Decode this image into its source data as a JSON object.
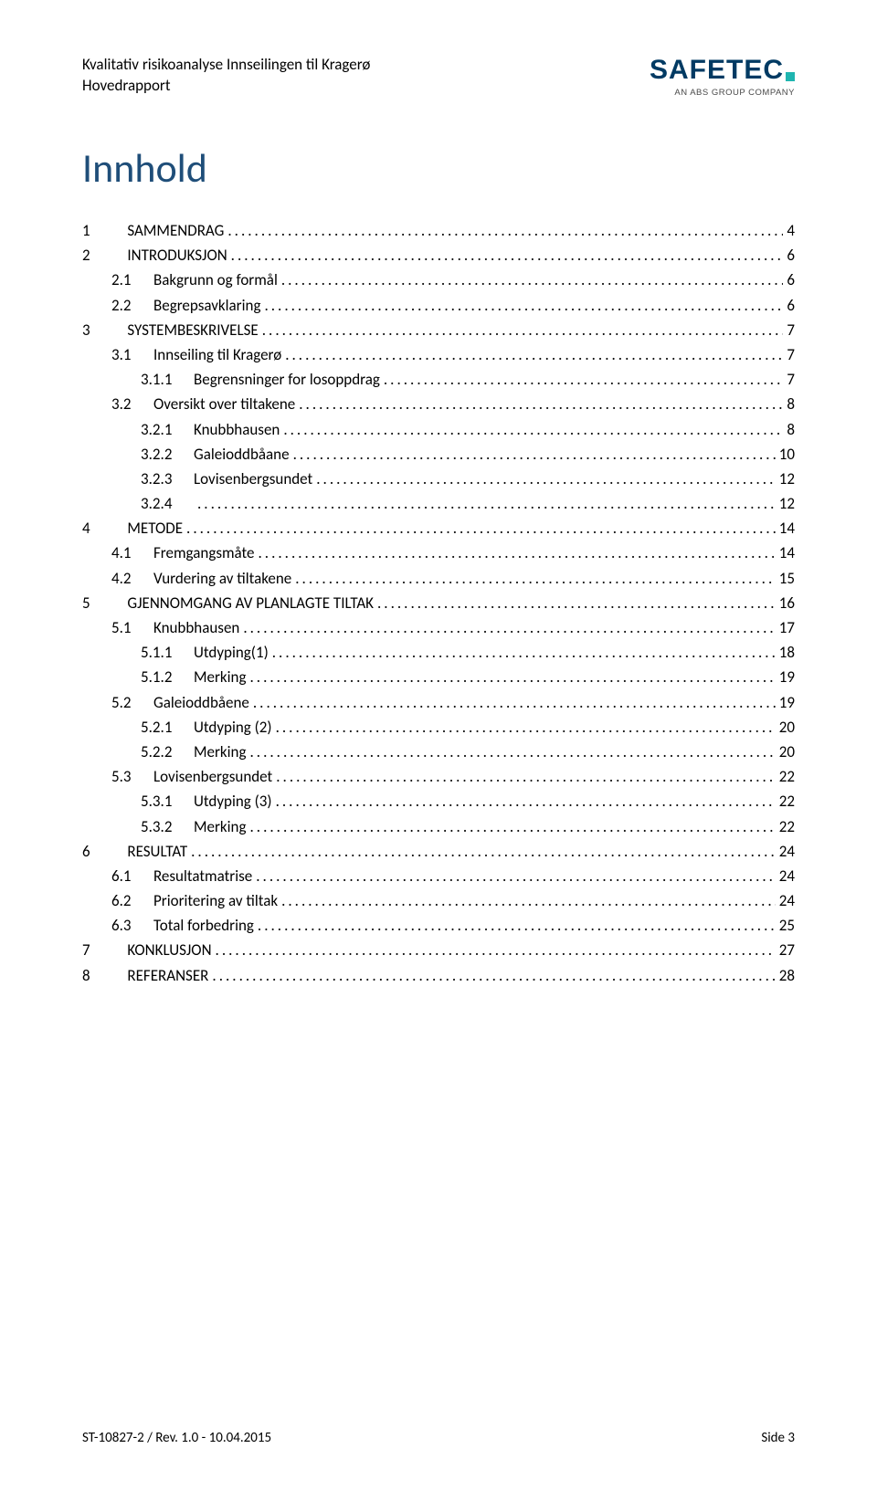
{
  "header": {
    "line1": "Kvalitativ risikoanalyse Innseilingen til Kragerø",
    "line2": "Hovedrapport",
    "logo_main": "SAFE",
    "logo_main_teal": "TEC",
    "logo_sub": "AN ABS GROUP COMPANY"
  },
  "title": "Innhold",
  "toc": [
    {
      "level": 1,
      "num": "1",
      "label": "SAMMENDRAG",
      "page": "4"
    },
    {
      "level": 1,
      "num": "2",
      "label": "INTRODUKSJON",
      "page": "6"
    },
    {
      "level": 2,
      "num": "2.1",
      "label": "Bakgrunn og formål",
      "page": "6"
    },
    {
      "level": 2,
      "num": "2.2",
      "label": "Begrepsavklaring",
      "page": "6"
    },
    {
      "level": 1,
      "num": "3",
      "label": "SYSTEMBESKRIVELSE",
      "page": "7"
    },
    {
      "level": 2,
      "num": "3.1",
      "label": "Innseiling til Kragerø",
      "page": "7"
    },
    {
      "level": 3,
      "num": "3.1.1",
      "label": "Begrensninger for losoppdrag",
      "page": "7"
    },
    {
      "level": 2,
      "num": "3.2",
      "label": "Oversikt over tiltakene",
      "page": "8"
    },
    {
      "level": 3,
      "num": "3.2.1",
      "label": "Knubbhausen",
      "page": "8"
    },
    {
      "level": 3,
      "num": "3.2.2",
      "label": "Galeioddbåane",
      "page": "10"
    },
    {
      "level": 3,
      "num": "3.2.3",
      "label": "Lovisenbergsundet",
      "page": "12"
    },
    {
      "level": 3,
      "num": "3.2.4",
      "label": "",
      "page": "12"
    },
    {
      "level": 1,
      "num": "4",
      "label": "METODE",
      "page": "14"
    },
    {
      "level": 2,
      "num": "4.1",
      "label": "Fremgangsmåte",
      "page": "14"
    },
    {
      "level": 2,
      "num": "4.2",
      "label": "Vurdering av tiltakene",
      "page": "15"
    },
    {
      "level": 1,
      "num": "5",
      "label": "GJENNOMGANG AV PLANLAGTE TILTAK",
      "page": "16"
    },
    {
      "level": 2,
      "num": "5.1",
      "label": "Knubbhausen",
      "page": "17"
    },
    {
      "level": 3,
      "num": "5.1.1",
      "label": "Utdyping(1)",
      "page": "18"
    },
    {
      "level": 3,
      "num": "5.1.2",
      "label": "Merking",
      "page": "19"
    },
    {
      "level": 2,
      "num": "5.2",
      "label": "Galeioddbåene",
      "page": "19"
    },
    {
      "level": 3,
      "num": "5.2.1",
      "label": "Utdyping (2)",
      "page": "20"
    },
    {
      "level": 3,
      "num": "5.2.2",
      "label": "Merking",
      "page": "20"
    },
    {
      "level": 2,
      "num": "5.3",
      "label": "Lovisenbergsundet",
      "page": "22"
    },
    {
      "level": 3,
      "num": "5.3.1",
      "label": "Utdyping (3)",
      "page": "22"
    },
    {
      "level": 3,
      "num": "5.3.2",
      "label": "Merking",
      "page": "22"
    },
    {
      "level": 1,
      "num": "6",
      "label": "RESULTAT",
      "page": "24"
    },
    {
      "level": 2,
      "num": "6.1",
      "label": "Resultatmatrise",
      "page": "24"
    },
    {
      "level": 2,
      "num": "6.2",
      "label": "Prioritering av tiltak",
      "page": "24"
    },
    {
      "level": 2,
      "num": "6.3",
      "label": "Total forbedring",
      "page": "25"
    },
    {
      "level": 1,
      "num": "7",
      "label": "KONKLUSJON",
      "page": "27"
    },
    {
      "level": 1,
      "num": "8",
      "label": "REFERANSER",
      "page": "28"
    }
  ],
  "footer": {
    "left": "ST-10827-2 / Rev. 1.0 - 10.04.2015",
    "right": "Side 3"
  },
  "colors": {
    "title": "#1f4e79",
    "logo_dark": "#003a63",
    "logo_teal": "#1fb5b0",
    "text": "#000000",
    "background": "#ffffff"
  },
  "typography": {
    "title_fontsize": 44,
    "body_fontsize": 17,
    "header_fontsize": 17,
    "footer_fontsize": 15,
    "logo_main_fontsize": 30,
    "logo_sub_fontsize": 9.5
  }
}
